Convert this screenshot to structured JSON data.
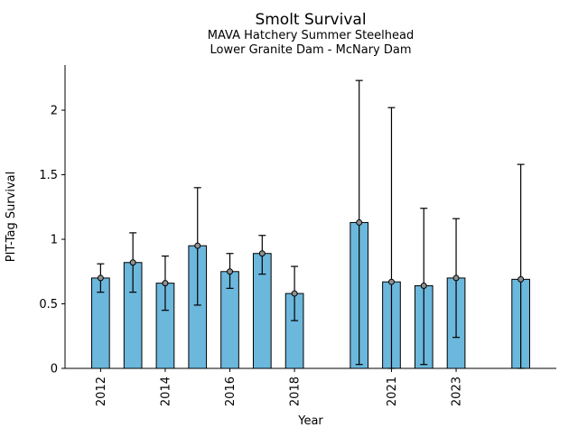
{
  "chart_data": {
    "type": "bar",
    "title": "Smolt Survival",
    "subtitle1": "MAVA Hatchery Summer Steelhead",
    "subtitle2": "Lower Granite Dam - McNary Dam",
    "xlabel": "Year",
    "ylabel": "PIT-Tag Survival",
    "bar_color": "#6CB7DC",
    "bar_edge_color": "#000000",
    "error_bar_color": "#000000",
    "marker": "circle",
    "marker_fill": "#909090",
    "grid": false,
    "legend": "none",
    "xlim": [
      2010.9,
      2026.1
    ],
    "ylim": [
      0,
      2.35
    ],
    "yticks": [
      0,
      0.5,
      1,
      1.5,
      2
    ],
    "ytick_labels": [
      "0",
      "0.5",
      "1",
      "1.5",
      "2"
    ],
    "xticks": [
      2012,
      2014,
      2016,
      2018,
      2021,
      2023
    ],
    "xtick_labels": [
      "2012",
      "2014",
      "2016",
      "2018",
      "2021",
      "2023"
    ],
    "years": [
      2012,
      2013,
      2014,
      2015,
      2016,
      2017,
      2018,
      2020,
      2021,
      2022,
      2023,
      2025
    ],
    "values": [
      0.7,
      0.82,
      0.66,
      0.95,
      0.75,
      0.89,
      0.58,
      1.13,
      0.67,
      0.64,
      0.7,
      0.69
    ],
    "err_low": [
      0.59,
      0.59,
      0.45,
      0.49,
      0.62,
      0.73,
      0.37,
      0.03,
      0.0,
      0.03,
      0.24,
      0.0
    ],
    "err_high": [
      0.81,
      1.05,
      0.87,
      1.4,
      0.89,
      1.03,
      0.79,
      2.23,
      2.02,
      1.24,
      1.16,
      1.58
    ]
  }
}
